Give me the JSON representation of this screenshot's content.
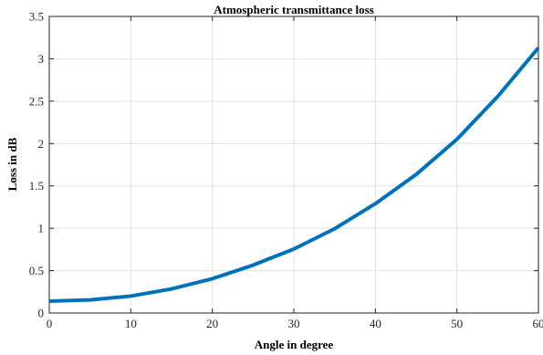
{
  "chart_data": {
    "type": "line",
    "title": "Atmospheric transmittance loss",
    "xlabel": "Angle in degree",
    "ylabel": "Loss in dB",
    "xlim": [
      0,
      60
    ],
    "ylim": [
      0,
      3.5
    ],
    "x_ticks": [
      "0",
      "10",
      "20",
      "30",
      "40",
      "50",
      "60"
    ],
    "y_ticks": [
      "0",
      "0.5",
      "1",
      "1.5",
      "2",
      "2.5",
      "3",
      "3.5"
    ],
    "grid": true,
    "x": [
      0,
      5,
      10,
      15,
      20,
      25,
      30,
      35,
      40,
      45,
      50,
      55,
      60
    ],
    "series": [
      {
        "color": "#0072BD",
        "values": [
          0.14,
          0.155,
          0.2,
          0.285,
          0.405,
          0.565,
          0.755,
          0.995,
          1.29,
          1.635,
          2.05,
          2.555,
          3.13
        ]
      }
    ]
  }
}
